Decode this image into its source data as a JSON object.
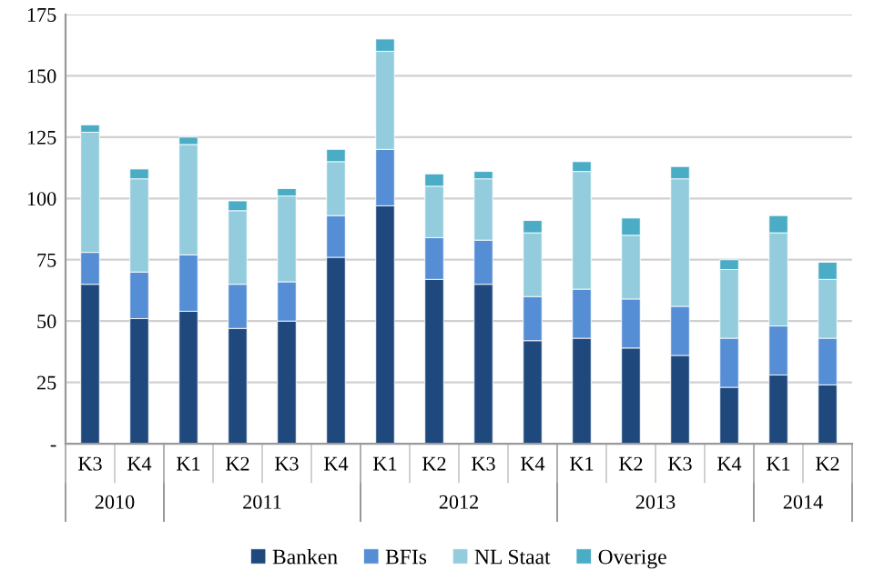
{
  "chart_data": {
    "type": "bar",
    "stacked": true,
    "categories": [
      "K3",
      "K4",
      "K1",
      "K2",
      "K3",
      "K4",
      "K1",
      "K2",
      "K3",
      "K4",
      "K1",
      "K2",
      "K3",
      "K4",
      "K1",
      "K2"
    ],
    "series": [
      {
        "name": "Banken",
        "color": "#1f497d",
        "values": [
          65,
          51,
          54,
          47,
          50,
          76,
          97,
          67,
          65,
          42,
          43,
          39,
          36,
          23,
          28,
          24
        ]
      },
      {
        "name": "BFIs",
        "color": "#558ed5",
        "values": [
          13,
          19,
          23,
          18,
          16,
          17,
          23,
          17,
          18,
          18,
          20,
          20,
          20,
          20,
          20,
          19
        ]
      },
      {
        "name": "NL Staat",
        "color": "#93cddd",
        "values": [
          49,
          38,
          45,
          30,
          35,
          22,
          40,
          21,
          25,
          26,
          48,
          26,
          52,
          28,
          38,
          24
        ]
      },
      {
        "name": "Overige",
        "color": "#4bacc6",
        "values": [
          3,
          4,
          3,
          4,
          3,
          5,
          5,
          5,
          3,
          5,
          4,
          7,
          5,
          4,
          7,
          7
        ]
      }
    ],
    "annotations": [
      "2010",
      "2011",
      "2012",
      "2013",
      "2014"
    ],
    "ylim": [
      0,
      175
    ],
    "yticks": [
      {
        "value": 0,
        "label": "-"
      },
      25,
      50,
      75,
      100,
      125,
      150,
      175
    ],
    "grid": "y",
    "legend": "bottom"
  }
}
